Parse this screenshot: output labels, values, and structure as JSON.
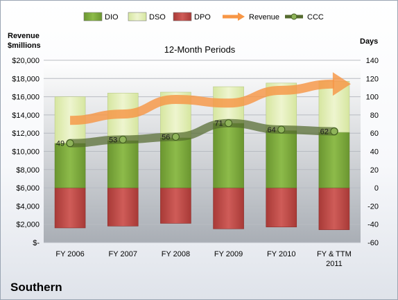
{
  "company": "Southern",
  "chart_data": {
    "type": "bar",
    "title": "12-Month Periods",
    "left_axis_label": [
      "Revenue",
      "$millions"
    ],
    "right_axis_label": "Days",
    "categories": [
      [
        "FY 2006"
      ],
      [
        "FY 2007"
      ],
      [
        "FY 2008"
      ],
      [
        "FY 2009"
      ],
      [
        "FY 2010"
      ],
      [
        "FY & TTM",
        "2011"
      ]
    ],
    "left_ylim": [
      0,
      20000
    ],
    "left_ticks": [
      "$-",
      "$2,000",
      "$4,000",
      "$6,000",
      "$8,000",
      "$10,000",
      "$12,000",
      "$14,000",
      "$16,000",
      "$18,000",
      "$20,000"
    ],
    "right_ylim": [
      -60,
      140
    ],
    "right_ticks": [
      "-60",
      "-40",
      "-20",
      "0",
      "20",
      "40",
      "60",
      "80",
      "100",
      "120",
      "140"
    ],
    "legend_position": "top",
    "series": [
      {
        "name": "DIO",
        "axis": "right",
        "color": "#77a23c",
        "values": [
          49,
          52,
          55,
          71,
          63,
          61
        ]
      },
      {
        "name": "DSO",
        "axis": "right",
        "color": "#e2eeb4",
        "values": [
          51,
          52,
          50,
          40,
          52,
          56
        ]
      },
      {
        "name": "DPO",
        "axis": "right",
        "color": "#c0504d",
        "values": [
          -44,
          -42,
          -39,
          -45,
          -43,
          -46
        ]
      },
      {
        "name": "Revenue",
        "axis": "left",
        "color": "#f79646",
        "values": [
          13400,
          14100,
          15700,
          15300,
          16700,
          17400
        ]
      },
      {
        "name": "CCC",
        "axis": "right",
        "color": "#556b2f",
        "values": [
          49,
          53,
          56,
          71,
          64,
          62
        ],
        "labels": [
          "49",
          "53",
          "56",
          "71",
          "64",
          "62"
        ]
      }
    ]
  }
}
